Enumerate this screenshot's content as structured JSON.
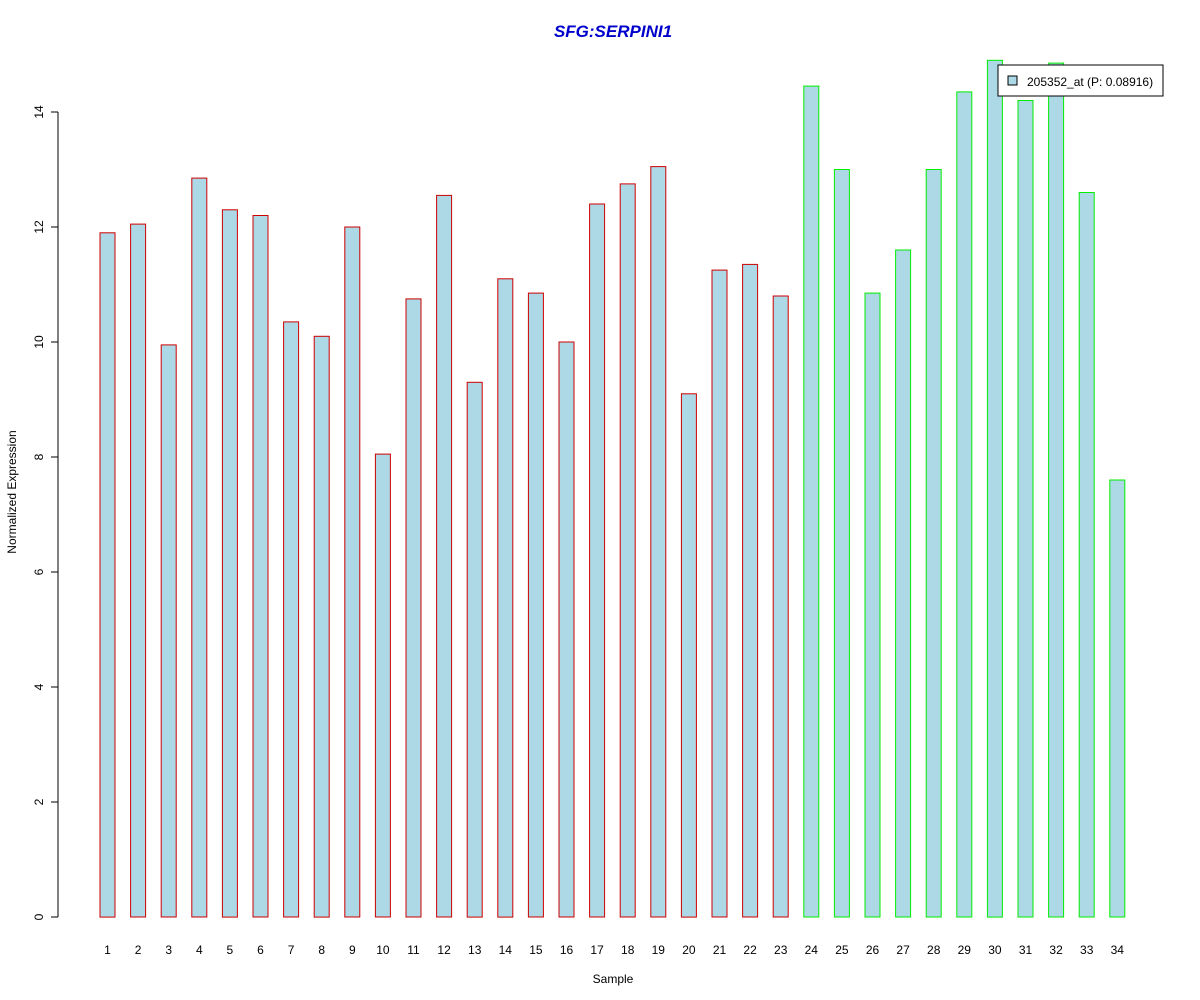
{
  "chart_data": {
    "type": "bar",
    "title": "SFG:SERPINI1",
    "xlabel": "Sample",
    "ylabel": "Normalized Expression",
    "ylim": [
      0,
      15
    ],
    "yticks": [
      0,
      2,
      4,
      6,
      8,
      10,
      12,
      14
    ],
    "grid": false,
    "legend_position": "top-right",
    "legend_label": "205352_at (P: 0.08916)",
    "categories": [
      "1",
      "2",
      "3",
      "4",
      "5",
      "6",
      "7",
      "8",
      "9",
      "10",
      "11",
      "12",
      "13",
      "14",
      "15",
      "16",
      "17",
      "18",
      "19",
      "20",
      "21",
      "22",
      "23",
      "24",
      "25",
      "26",
      "27",
      "28",
      "29",
      "30",
      "31",
      "32",
      "33",
      "34"
    ],
    "series": [
      {
        "name": "205352_at (P: 0.08916)",
        "values": [
          11.9,
          12.05,
          9.95,
          12.85,
          12.3,
          12.2,
          10.35,
          10.1,
          12.0,
          8.05,
          10.75,
          12.55,
          9.3,
          11.1,
          10.85,
          10.0,
          12.4,
          12.75,
          13.05,
          9.1,
          11.25,
          11.35,
          10.8,
          14.45,
          13.0,
          10.85,
          11.6,
          13.0,
          14.35,
          14.9,
          14.2,
          14.85,
          12.6,
          7.6
        ]
      }
    ],
    "group_colors": {
      "group1": "#cc0000",
      "group2": "#00ee00"
    },
    "group_membership": [
      "group1",
      "group1",
      "group1",
      "group1",
      "group1",
      "group1",
      "group1",
      "group1",
      "group1",
      "group1",
      "group1",
      "group1",
      "group1",
      "group1",
      "group1",
      "group1",
      "group1",
      "group1",
      "group1",
      "group1",
      "group1",
      "group1",
      "group1",
      "group2",
      "group2",
      "group2",
      "group2",
      "group2",
      "group2",
      "group2",
      "group2",
      "group2",
      "group2",
      "group2"
    ],
    "bar_fill": "#add8e6",
    "title_color": "#0000cc"
  }
}
